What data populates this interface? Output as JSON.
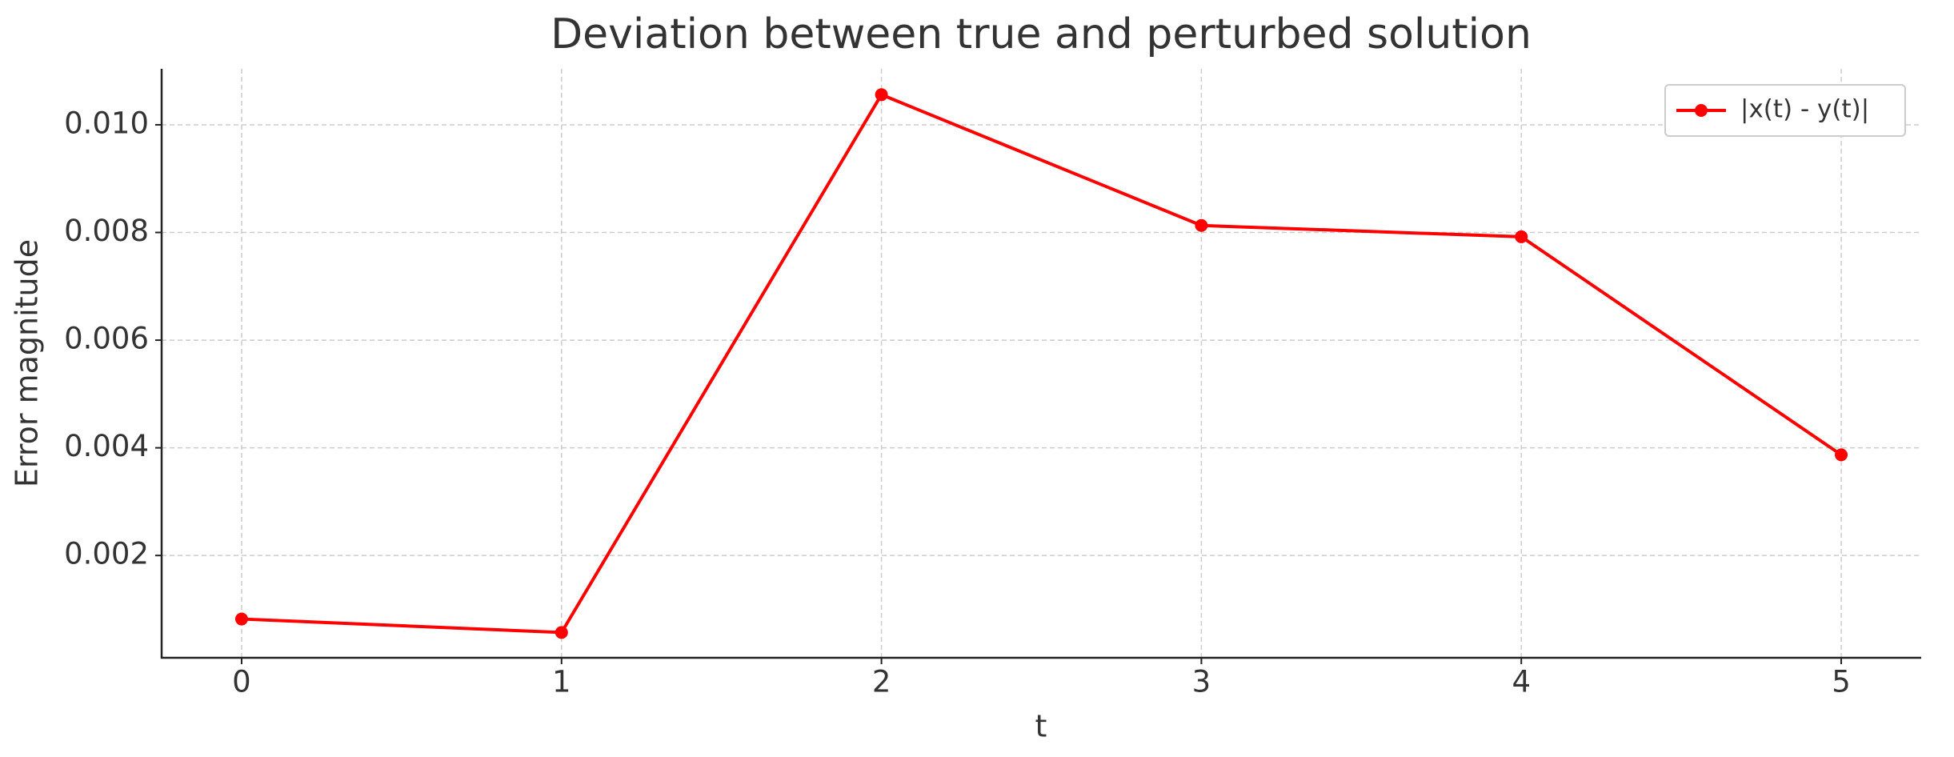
{
  "chart_data": {
    "type": "line",
    "title": "Deviation between true and perturbed solution",
    "xlabel": "t",
    "ylabel": "Error magnitude",
    "x": [
      0,
      1,
      2,
      3,
      4,
      5
    ],
    "series": [
      {
        "name": "|x(t) - y(t)|",
        "color": "#ff0000",
        "values": [
          0.00082,
          0.00057,
          0.01056,
          0.00813,
          0.00792,
          0.00387
        ]
      }
    ],
    "xlim": [
      -0.25,
      5.25
    ],
    "xticks": [
      0,
      1,
      2,
      3,
      4,
      5
    ],
    "ylim": [
      0.0001,
      0.01104
    ],
    "yticks": [
      0.002,
      0.004,
      0.006,
      0.008,
      {
        "value": 0.01,
        "label": "0.010"
      }
    ],
    "grid": true,
    "legend": "upper right"
  }
}
